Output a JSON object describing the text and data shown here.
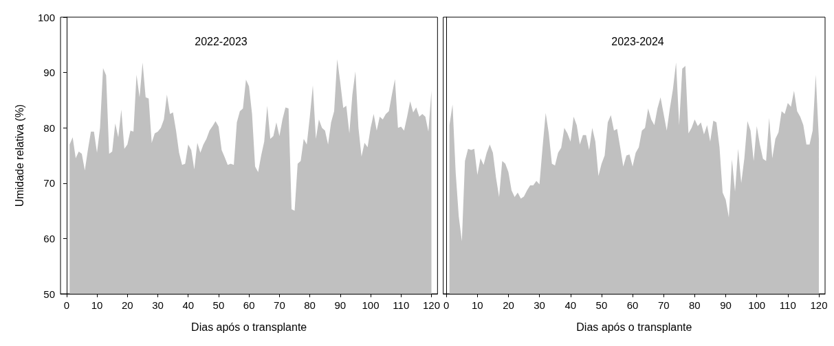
{
  "chart_data": [
    {
      "type": "area",
      "title": "2022-2023",
      "xlabel": "Dias após o transplante",
      "ylabel": "Umidade relativa (%)",
      "color": "#c0c0c0",
      "x": [
        1,
        2,
        3,
        4,
        5,
        6,
        7,
        8,
        9,
        10,
        11,
        12,
        13,
        14,
        15,
        16,
        17,
        18,
        19,
        20,
        21,
        22,
        23,
        24,
        25,
        26,
        27,
        28,
        29,
        30,
        31,
        32,
        33,
        34,
        35,
        36,
        37,
        38,
        39,
        40,
        41,
        42,
        43,
        44,
        45,
        46,
        47,
        48,
        49,
        50,
        51,
        52,
        53,
        54,
        55,
        56,
        57,
        58,
        59,
        60,
        61,
        62,
        63,
        64,
        65,
        66,
        67,
        68,
        69,
        70,
        71,
        72,
        73,
        74,
        75,
        76,
        77,
        78,
        79,
        80,
        81,
        82,
        83,
        84,
        85,
        86,
        87,
        88,
        89,
        90,
        91,
        92,
        93,
        94,
        95,
        96,
        97,
        98,
        99,
        100,
        101,
        102,
        103,
        104,
        105,
        106,
        107,
        108,
        109,
        110,
        111,
        112,
        113,
        114,
        115,
        116,
        117,
        118,
        119,
        120
      ],
      "values": [
        77,
        78.3,
        74.5,
        75.7,
        75.3,
        72.3,
        76,
        79.3,
        79.3,
        75.5,
        80,
        90.8,
        89.5,
        75.3,
        75.7,
        80.8,
        78.3,
        83.3,
        76.2,
        77,
        79.5,
        79.3,
        89.6,
        85.5,
        91.8,
        85.5,
        85.3,
        77.3,
        79,
        79.3,
        80,
        81.5,
        86,
        82.5,
        82.8,
        79.5,
        75.5,
        73.3,
        73.5,
        77,
        76,
        72.5,
        77.3,
        75.5,
        77,
        78,
        79.5,
        80.3,
        81.2,
        80.2,
        76,
        74.7,
        73.3,
        73.5,
        73.3,
        81,
        83,
        83.5,
        88.7,
        87.5,
        82.5,
        73,
        72,
        75,
        77.5,
        84,
        78,
        78.5,
        81,
        78.5,
        81.5,
        83.7,
        83.5,
        65.3,
        65,
        73.5,
        74,
        78,
        77,
        82,
        87.7,
        78,
        81.5,
        80,
        79.5,
        77,
        81,
        83,
        92.4,
        88.3,
        83.6,
        84,
        79,
        86,
        90.2,
        80,
        74.8,
        77.3,
        76.5,
        80,
        82.5,
        79.5,
        82,
        81.5,
        82.5,
        83,
        86,
        88.8,
        80,
        80.2,
        79.5,
        82,
        84.8,
        82.8,
        83.7,
        82,
        82.5,
        82,
        79.3,
        86.7
      ],
      "xlim": [
        -2,
        122
      ],
      "xticks": [
        0,
        10,
        20,
        30,
        40,
        50,
        60,
        70,
        80,
        90,
        100,
        110,
        120
      ],
      "ylim": [
        50,
        100
      ],
      "yticks": [
        50,
        60,
        70,
        80,
        90,
        100
      ]
    },
    {
      "type": "area",
      "title": "2023-2024",
      "xlabel": "Dias após o transplante",
      "color": "#c0c0c0",
      "x": [
        1,
        2,
        3,
        4,
        5,
        6,
        7,
        8,
        9,
        10,
        11,
        12,
        13,
        14,
        15,
        16,
        17,
        18,
        19,
        20,
        21,
        22,
        23,
        24,
        25,
        26,
        27,
        28,
        29,
        30,
        31,
        32,
        33,
        34,
        35,
        36,
        37,
        38,
        39,
        40,
        41,
        42,
        43,
        44,
        45,
        46,
        47,
        48,
        49,
        50,
        51,
        52,
        53,
        54,
        55,
        56,
        57,
        58,
        59,
        60,
        61,
        62,
        63,
        64,
        65,
        66,
        67,
        68,
        69,
        70,
        71,
        72,
        73,
        74,
        75,
        76,
        77,
        78,
        79,
        80,
        81,
        82,
        83,
        84,
        85,
        86,
        87,
        88,
        89,
        90,
        91,
        92,
        93,
        94,
        95,
        96,
        97,
        98,
        99,
        100,
        101,
        102,
        103,
        104,
        105,
        106,
        107,
        108,
        109,
        110,
        111,
        112,
        113,
        114,
        115,
        116,
        117,
        118,
        119,
        120
      ],
      "values": [
        80.5,
        84.2,
        72,
        64,
        59.5,
        74,
        76.2,
        76,
        76.2,
        71.5,
        74.5,
        73.3,
        75.5,
        77,
        75.5,
        71,
        67.5,
        74,
        73.5,
        72,
        68.7,
        67.5,
        68.3,
        67.2,
        67.6,
        68.7,
        69.6,
        69.6,
        70.4,
        69.8,
        76.5,
        82.7,
        79,
        73.5,
        73.2,
        75.5,
        76.4,
        80,
        79,
        77.5,
        82,
        80.5,
        77,
        78.7,
        78.7,
        76,
        80,
        77.5,
        71.3,
        73.5,
        75,
        81,
        82.3,
        79.5,
        79.8,
        76.5,
        73,
        75,
        75.2,
        73,
        75.5,
        76.5,
        79.5,
        80,
        83.5,
        81.5,
        80.5,
        83.5,
        85.5,
        82.5,
        79.5,
        83.5,
        87,
        91.8,
        80.5,
        90.7,
        91.2,
        79,
        80,
        81.5,
        80.3,
        81,
        78.8,
        80.5,
        77.5,
        81.3,
        81,
        76.5,
        68.3,
        67,
        63.8,
        74.3,
        68.5,
        76.2,
        70,
        74.5,
        81.2,
        79.5,
        74,
        80.3,
        77,
        74.4,
        74,
        81.8,
        74.5,
        78,
        79.2,
        83,
        82.5,
        84.5,
        83.8,
        86.7,
        83,
        82,
        80.5,
        77,
        77,
        79.5,
        89.6,
        78
      ],
      "xlim": [
        -1,
        122
      ],
      "xticks": [
        0,
        10,
        20,
        30,
        40,
        50,
        60,
        70,
        80,
        90,
        100,
        110,
        120
      ],
      "ylim": [
        50,
        100
      ],
      "yticks": [
        50,
        60,
        70,
        80,
        90,
        100
      ],
      "tick_labels": "x"
    }
  ]
}
